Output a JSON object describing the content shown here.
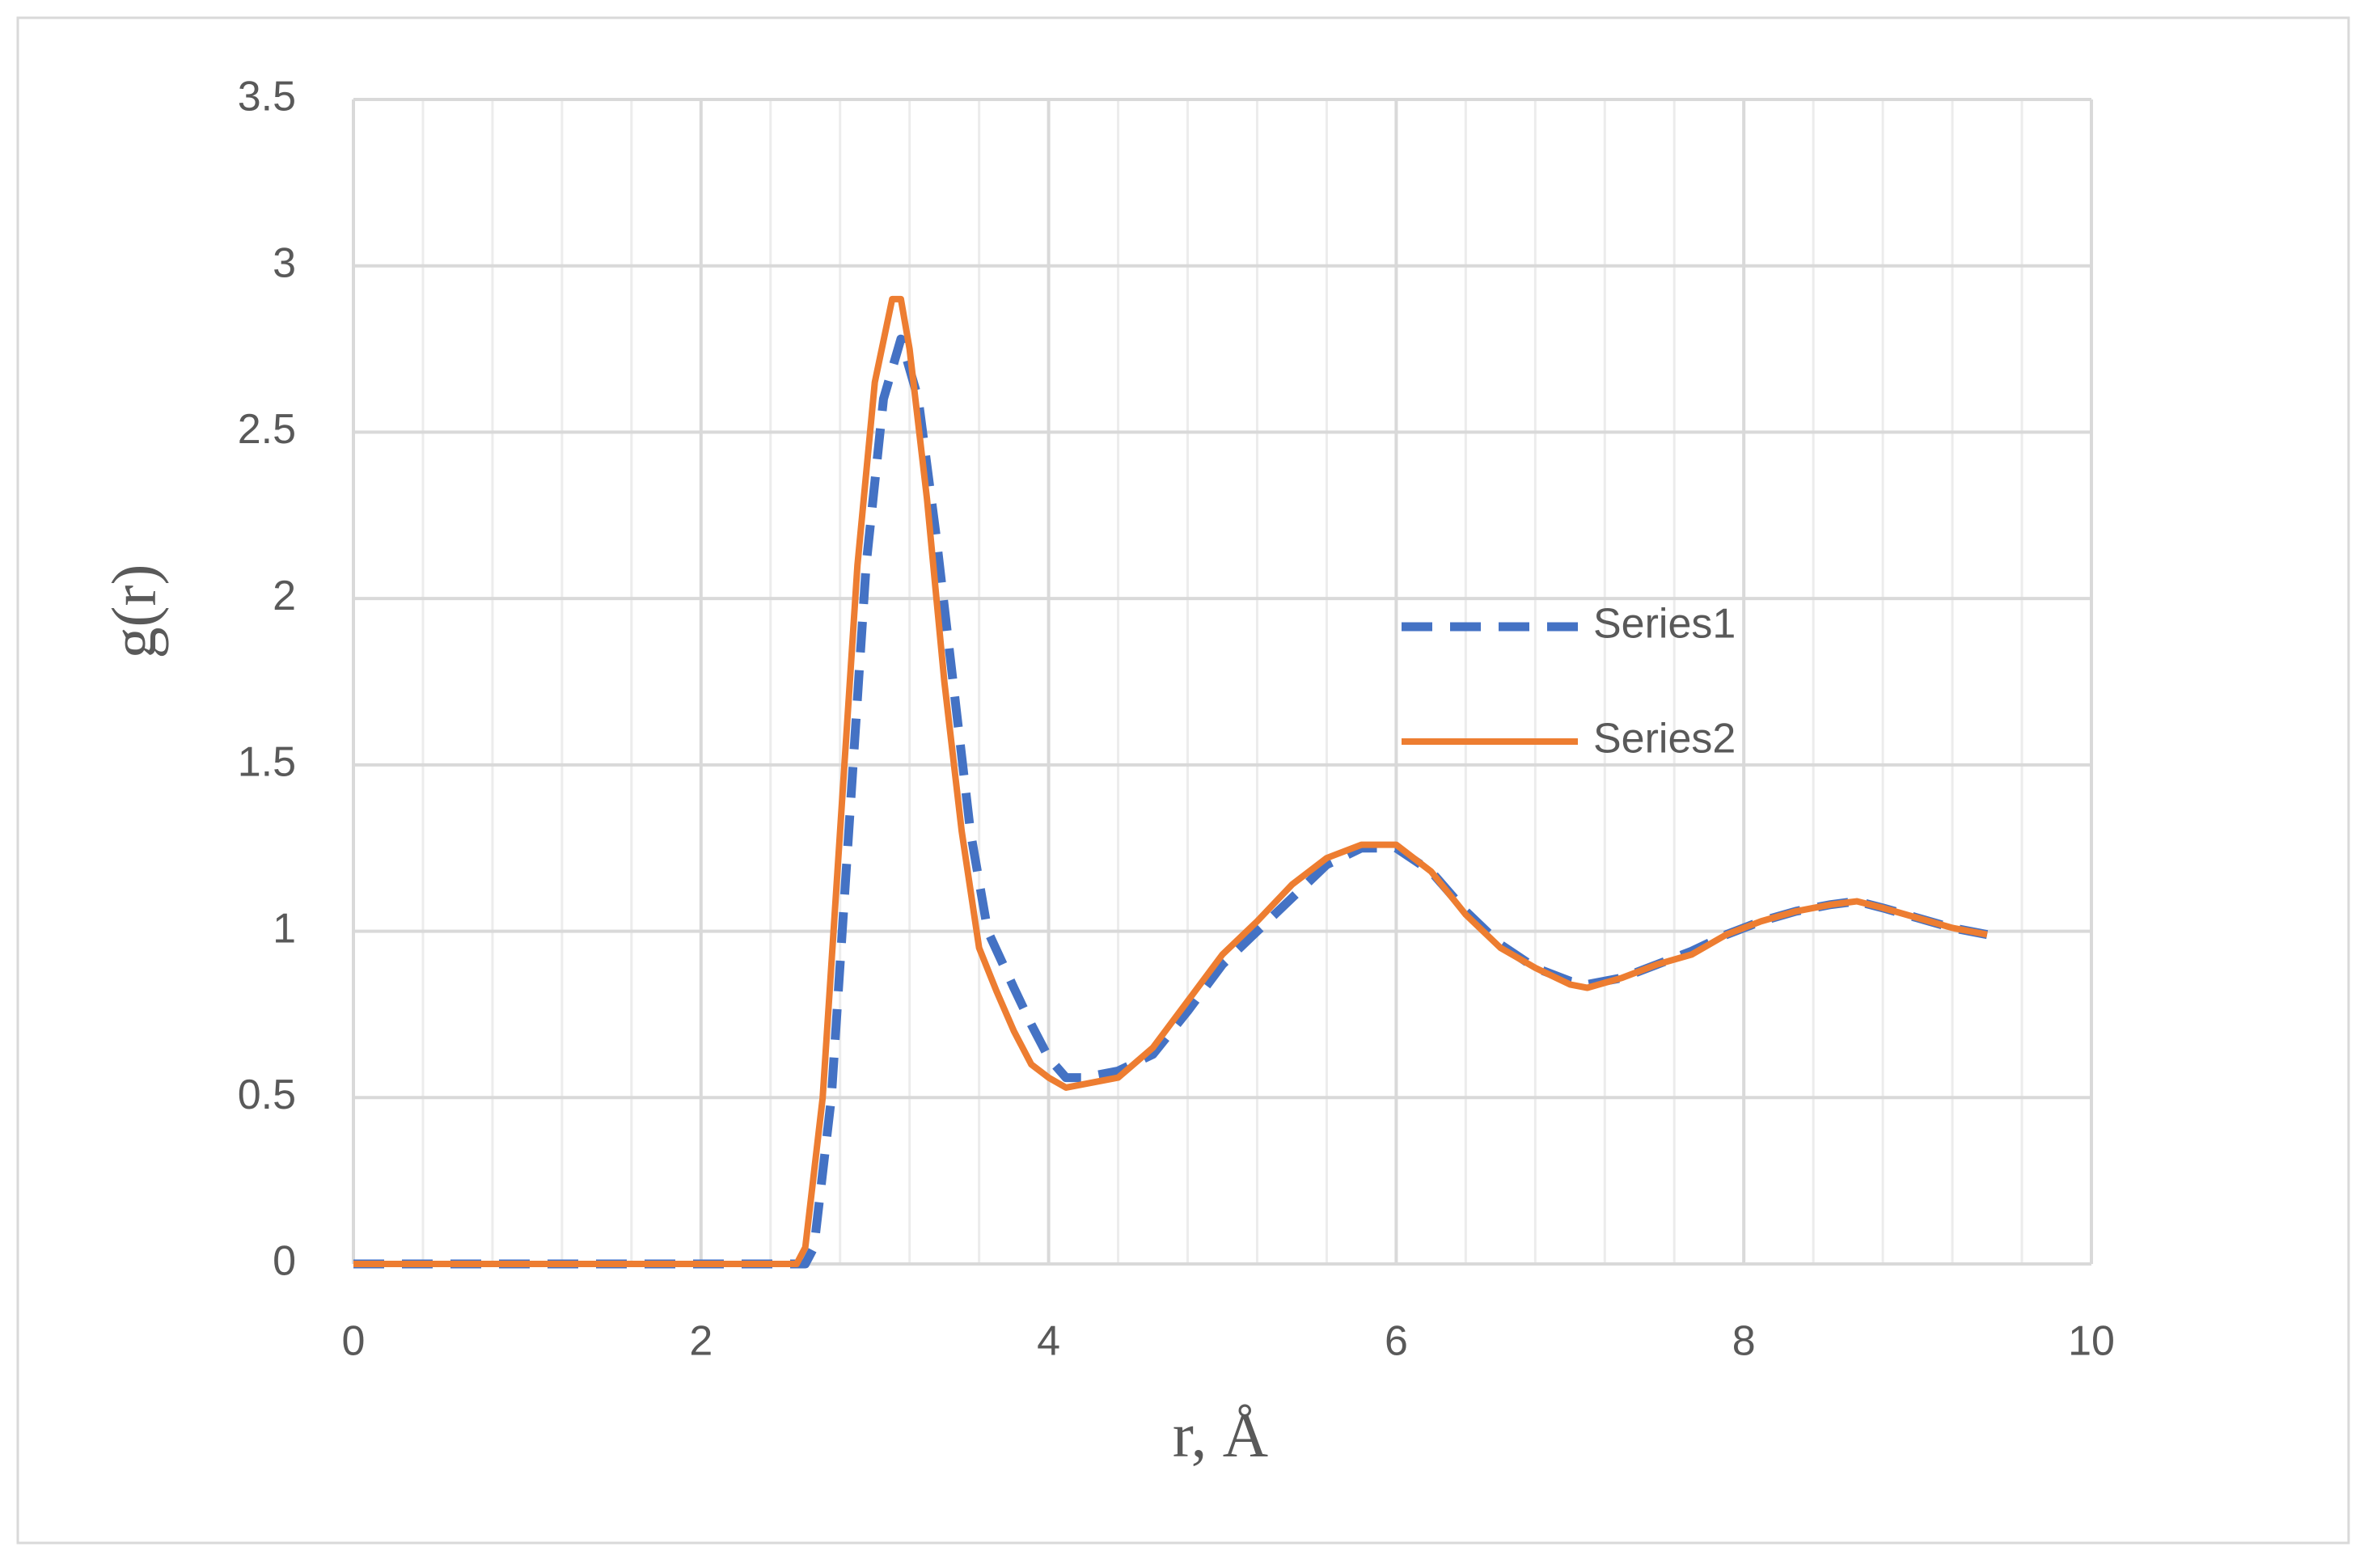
{
  "chart_data": {
    "type": "line",
    "xlabel": "r, Å",
    "ylabel": "g(r)",
    "xlim": [
      0,
      10
    ],
    "ylim": [
      0,
      3.5
    ],
    "xticks": [
      0,
      2,
      4,
      6,
      8,
      10
    ],
    "yticks": [
      0,
      0.5,
      1,
      1.5,
      2,
      2.5,
      3,
      3.5
    ],
    "x_minor_grid": [
      0.4,
      0.8,
      1.2,
      1.6,
      2.4,
      2.8,
      3.2,
      3.6,
      4.4,
      4.8,
      5.2,
      5.6,
      6.4,
      6.8,
      7.2,
      7.6,
      8.4,
      8.8,
      9.2,
      9.6
    ],
    "grid": true,
    "legend": "right",
    "series": [
      {
        "name": "Series1",
        "color": "#4472c4",
        "dashed": true,
        "x": [
          0,
          2.6,
          2.65,
          2.75,
          2.85,
          2.95,
          3.05,
          3.15,
          3.25,
          3.35,
          3.45,
          3.55,
          3.65,
          3.8,
          3.9,
          4.0,
          4.1,
          4.2,
          4.4,
          4.6,
          4.8,
          5.0,
          5.2,
          5.4,
          5.6,
          5.8,
          6.0,
          6.2,
          6.4,
          6.6,
          6.8,
          7.0,
          7.1,
          7.3,
          7.5,
          7.7,
          7.9,
          8.1,
          8.3,
          8.5,
          8.65,
          8.8,
          9.0,
          9.2,
          9.4
        ],
        "values": [
          0,
          0,
          0.05,
          0.5,
          1.3,
          2.1,
          2.6,
          2.78,
          2.6,
          2.2,
          1.75,
          1.3,
          1.0,
          0.83,
          0.72,
          0.62,
          0.56,
          0.56,
          0.58,
          0.63,
          0.76,
          0.9,
          1.0,
          1.1,
          1.2,
          1.25,
          1.25,
          1.18,
          1.06,
          0.96,
          0.89,
          0.85,
          0.84,
          0.86,
          0.9,
          0.94,
          0.99,
          1.03,
          1.06,
          1.08,
          1.09,
          1.07,
          1.04,
          1.01,
          0.99
        ]
      },
      {
        "name": "Series2",
        "color": "#ed7d31",
        "dashed": false,
        "x": [
          0,
          2.55,
          2.6,
          2.7,
          2.8,
          2.9,
          3.0,
          3.1,
          3.15,
          3.2,
          3.3,
          3.4,
          3.5,
          3.6,
          3.7,
          3.8,
          3.9,
          4.0,
          4.1,
          4.2,
          4.4,
          4.6,
          4.8,
          5.0,
          5.2,
          5.4,
          5.6,
          5.8,
          6.0,
          6.2,
          6.4,
          6.6,
          6.8,
          7.0,
          7.1,
          7.3,
          7.5,
          7.7,
          7.9,
          8.1,
          8.3,
          8.5,
          8.65,
          8.8,
          9.0,
          9.2,
          9.4
        ],
        "values": [
          0,
          0,
          0.05,
          0.5,
          1.3,
          2.1,
          2.65,
          2.9,
          2.9,
          2.75,
          2.3,
          1.75,
          1.3,
          0.95,
          0.82,
          0.7,
          0.6,
          0.56,
          0.53,
          0.54,
          0.56,
          0.65,
          0.79,
          0.93,
          1.03,
          1.14,
          1.22,
          1.26,
          1.26,
          1.18,
          1.05,
          0.95,
          0.89,
          0.84,
          0.83,
          0.86,
          0.9,
          0.93,
          0.99,
          1.03,
          1.06,
          1.08,
          1.09,
          1.07,
          1.04,
          1.01,
          0.99
        ]
      }
    ]
  }
}
